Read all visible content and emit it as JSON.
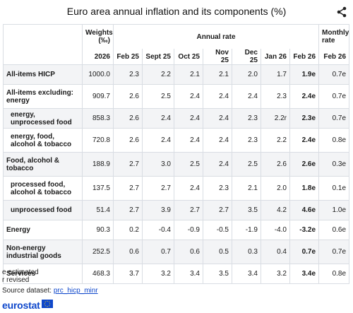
{
  "title": "Euro area annual inflation and its components (%)",
  "header": {
    "weights": "Weights (‰)",
    "annual_rate": "Annual rate",
    "monthly_rate": "Monthly rate"
  },
  "columns": [
    "",
    "2026",
    "Feb 25",
    "Sept 25",
    "Oct 25",
    "Nov 25",
    "Dec 25",
    "Jan 26",
    "Feb 26",
    "Feb 26"
  ],
  "rows": [
    {
      "label": "All-items HICP",
      "indent": false,
      "cells": [
        "1000.0",
        "2.3",
        "2.2",
        "2.1",
        "2.1",
        "2.0",
        "1.7",
        "1.9e",
        "0.7e"
      ]
    },
    {
      "label": "All-items excluding: energy",
      "indent": false,
      "cells": [
        "909.7",
        "2.6",
        "2.5",
        "2.4",
        "2.4",
        "2.4",
        "2.3",
        "2.4e",
        "0.7e"
      ]
    },
    {
      "label": "energy, unprocessed food",
      "indent": true,
      "cells": [
        "858.3",
        "2.6",
        "2.4",
        "2.4",
        "2.4",
        "2.3",
        "2.2r",
        "2.3e",
        "0.7e"
      ]
    },
    {
      "label": "energy, food, alcohol & tobacco",
      "indent": true,
      "cells": [
        "720.8",
        "2.6",
        "2.4",
        "2.4",
        "2.4",
        "2.3",
        "2.2",
        "2.4e",
        "0.8e"
      ]
    },
    {
      "label": "Food, alcohol & tobacco",
      "indent": false,
      "cells": [
        "188.9",
        "2.7",
        "3.0",
        "2.5",
        "2.4",
        "2.5",
        "2.6",
        "2.6e",
        "0.3e"
      ]
    },
    {
      "label": "processed food, alcohol & tobacco",
      "indent": true,
      "cells": [
        "137.5",
        "2.7",
        "2.7",
        "2.4",
        "2.3",
        "2.1",
        "2.0",
        "1.8e",
        "0.1e"
      ]
    },
    {
      "label": "unprocessed food",
      "indent": true,
      "cells": [
        "51.4",
        "2.7",
        "3.9",
        "2.7",
        "2.7",
        "3.5",
        "4.2",
        "4.6e",
        "1.0e"
      ]
    },
    {
      "label": "Energy",
      "indent": false,
      "cells": [
        "90.3",
        "0.2",
        "-0.4",
        "-0.9",
        "-0.5",
        "-1.9",
        "-4.0",
        "-3.2e",
        "0.6e"
      ]
    },
    {
      "label": "Non-energy industrial goods",
      "indent": false,
      "cells": [
        "252.5",
        "0.6",
        "0.7",
        "0.6",
        "0.5",
        "0.3",
        "0.4",
        "0.7e",
        "0.7e"
      ]
    },
    {
      "label": "Services",
      "indent": false,
      "cells": [
        "468.3",
        "3.7",
        "3.2",
        "3.4",
        "3.5",
        "3.4",
        "3.2",
        "3.4e",
        "0.8e"
      ]
    }
  ],
  "footnotes": {
    "estimated": "e estimated",
    "revised": "r revised",
    "source_label": "Source dataset:",
    "source_link": "prc_hicp_minr"
  },
  "logo": "eurostat",
  "colors": {
    "brand": "#0e47cb",
    "zebra": "#f3f4f6",
    "border": "#d9dde3"
  },
  "icons": {
    "share": "share-icon",
    "flag": "eu-flag-icon"
  }
}
